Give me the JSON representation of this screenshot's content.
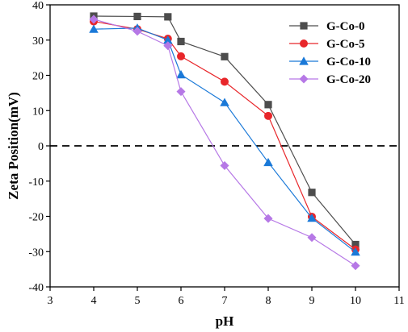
{
  "chart_data": {
    "type": "line",
    "xlabel": "pH",
    "ylabel": "Zeta Position(mV)",
    "xlim": [
      3,
      11
    ],
    "ylim": [
      -40,
      40
    ],
    "xticks": [
      3,
      4,
      5,
      6,
      7,
      8,
      9,
      10,
      11
    ],
    "yticks": [
      -40,
      -30,
      -20,
      -10,
      0,
      10,
      20,
      30,
      40
    ],
    "grid": false,
    "legend_position": "top-right",
    "reference_line": {
      "y": 0,
      "style": "dashed"
    },
    "series": [
      {
        "name": "G-Co-0",
        "color": "#4d4d4d",
        "marker": "square",
        "x": [
          4,
          5,
          5.7,
          6,
          7,
          8,
          9,
          10
        ],
        "y": [
          36.8,
          36.7,
          36.6,
          29.6,
          25.3,
          11.7,
          -13.2,
          -28.0
        ]
      },
      {
        "name": "G-Co-5",
        "color": "#e8262a",
        "marker": "circle",
        "x": [
          4,
          5,
          5.7,
          6,
          7,
          8,
          9,
          10
        ],
        "y": [
          35.3,
          33.1,
          30.4,
          25.4,
          18.2,
          8.5,
          -20.1,
          -29.4
        ]
      },
      {
        "name": "G-Co-10",
        "color": "#1a79d8",
        "marker": "triangle",
        "x": [
          4,
          5,
          5.7,
          6,
          7,
          8,
          9,
          10
        ],
        "y": [
          33.1,
          33.4,
          30.0,
          20.2,
          12.3,
          -4.7,
          -20.5,
          -30.1
        ]
      },
      {
        "name": "G-Co-20",
        "color": "#b678e6",
        "marker": "diamond",
        "x": [
          4,
          5,
          5.7,
          6,
          7,
          8,
          9,
          10
        ],
        "y": [
          35.9,
          32.5,
          28.4,
          15.4,
          -5.6,
          -20.6,
          -26.0,
          -34.0
        ]
      }
    ]
  }
}
